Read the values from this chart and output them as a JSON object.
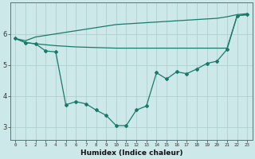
{
  "xlabel": "Humidex (Indice chaleur)",
  "bg_color": "#cce8e8",
  "grid_color": "#aacccc",
  "line_color": "#1a7a6a",
  "ylim": [
    2.6,
    7.0
  ],
  "xlim": [
    -0.5,
    23.5
  ],
  "line1_x": [
    0,
    1,
    2,
    3,
    4,
    5,
    6,
    7,
    8,
    9,
    10,
    11,
    12,
    13,
    14,
    15,
    16,
    17,
    18,
    19,
    20,
    21,
    22,
    23
  ],
  "line1_y": [
    5.85,
    5.78,
    5.9,
    5.95,
    6.0,
    6.05,
    6.1,
    6.15,
    6.2,
    6.25,
    6.3,
    6.32,
    6.34,
    6.36,
    6.38,
    6.4,
    6.42,
    6.44,
    6.46,
    6.48,
    6.5,
    6.55,
    6.62,
    6.65
  ],
  "line2_x": [
    0,
    1,
    2,
    3,
    4,
    5,
    6,
    7,
    8,
    9,
    10,
    11,
    12,
    13,
    14,
    15,
    16,
    17,
    18,
    19,
    20,
    21,
    22,
    23
  ],
  "line2_y": [
    5.85,
    5.72,
    5.68,
    5.65,
    5.62,
    5.6,
    5.58,
    5.57,
    5.56,
    5.55,
    5.54,
    5.54,
    5.54,
    5.54,
    5.54,
    5.54,
    5.54,
    5.54,
    5.54,
    5.54,
    5.54,
    5.54,
    6.58,
    6.62
  ],
  "line3_x": [
    0,
    1,
    2,
    3,
    4,
    5,
    6,
    7,
    8,
    9,
    10,
    11,
    12,
    13,
    14,
    15,
    16,
    17,
    18,
    19,
    20,
    21,
    22,
    23
  ],
  "line3_y": [
    5.85,
    5.72,
    5.68,
    5.45,
    5.42,
    3.72,
    3.82,
    3.75,
    3.55,
    3.38,
    3.05,
    3.05,
    3.55,
    3.68,
    4.75,
    4.55,
    4.78,
    4.72,
    4.87,
    5.05,
    5.12,
    5.5,
    6.58,
    6.62
  ]
}
